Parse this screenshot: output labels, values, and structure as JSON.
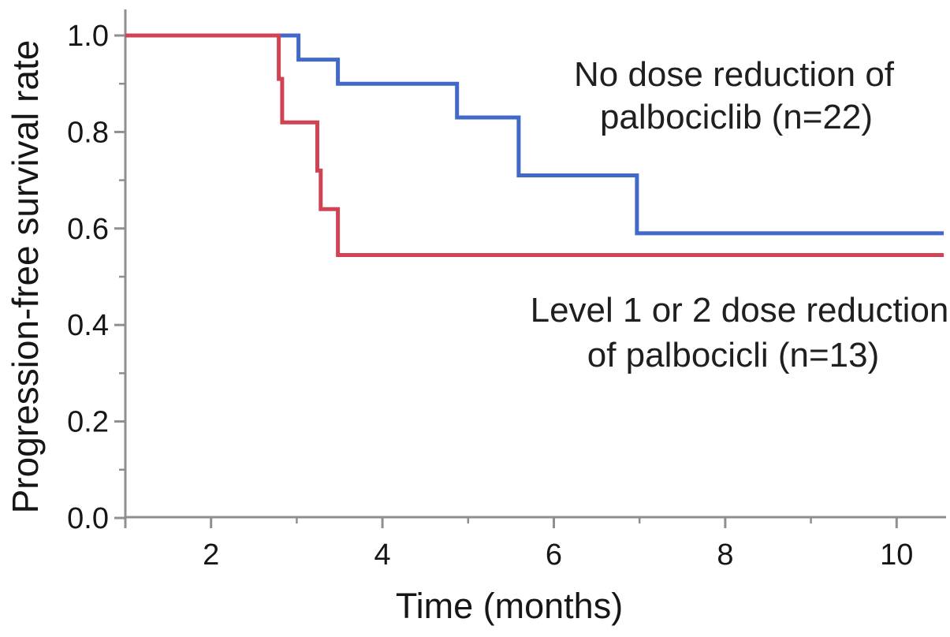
{
  "figure": {
    "background_color": "#ffffff",
    "axis_color": "#8f8f8f",
    "text_color": "#1f1f1f"
  },
  "chart_data": {
    "type": "line",
    "subtype": "kaplan-meier-step",
    "title": "",
    "xlabel": "Time (months)",
    "ylabel": "Progression-free survival rate",
    "xlim": [
      1,
      10.55
    ],
    "ylim": [
      0.0,
      1.0
    ],
    "grid": false,
    "legend_position": "inline-annotations",
    "x_major_ticks": [
      2,
      4,
      6,
      8,
      10
    ],
    "x_major_tick_labels": [
      "2",
      "4",
      "6",
      "8",
      "10"
    ],
    "x_minor_ticks": [
      3,
      5,
      7,
      9
    ],
    "y_major_ticks": [
      1.0,
      0.8,
      0.6,
      0.4,
      0.2,
      0.0
    ],
    "y_major_tick_labels": [
      "1.0",
      "0.8",
      "0.6",
      "0.4",
      "0.2",
      "0.0"
    ],
    "y_minor_ticks": [
      0.9,
      0.7,
      0.5,
      0.3,
      0.1
    ],
    "series": [
      {
        "name": "No dose reduction of palbociclib",
        "n": 22,
        "color": "#4169c9",
        "label_lines": [
          "No dose reduction of",
          "palbociclib (n=22)"
        ],
        "points": [
          [
            1.0,
            1.0
          ],
          [
            3.02,
            1.0
          ],
          [
            3.02,
            0.95
          ],
          [
            3.48,
            0.95
          ],
          [
            3.48,
            0.9
          ],
          [
            4.87,
            0.9
          ],
          [
            4.87,
            0.83
          ],
          [
            5.59,
            0.83
          ],
          [
            5.59,
            0.71
          ],
          [
            6.97,
            0.71
          ],
          [
            6.97,
            0.59
          ],
          [
            10.55,
            0.59
          ]
        ]
      },
      {
        "name": "Level 1 or 2 dose reduction of palbociclib",
        "n": 13,
        "color": "#cf4355",
        "label_lines": [
          "Level 1 or 2 dose reduction",
          "of palbocicli (n=13)"
        ],
        "points": [
          [
            1.0,
            1.0
          ],
          [
            2.79,
            1.0
          ],
          [
            2.79,
            0.91
          ],
          [
            2.83,
            0.91
          ],
          [
            2.83,
            0.82
          ],
          [
            3.24,
            0.82
          ],
          [
            3.24,
            0.72
          ],
          [
            3.28,
            0.72
          ],
          [
            3.28,
            0.64
          ],
          [
            3.48,
            0.64
          ],
          [
            3.48,
            0.545
          ],
          [
            10.55,
            0.545
          ]
        ]
      }
    ]
  }
}
